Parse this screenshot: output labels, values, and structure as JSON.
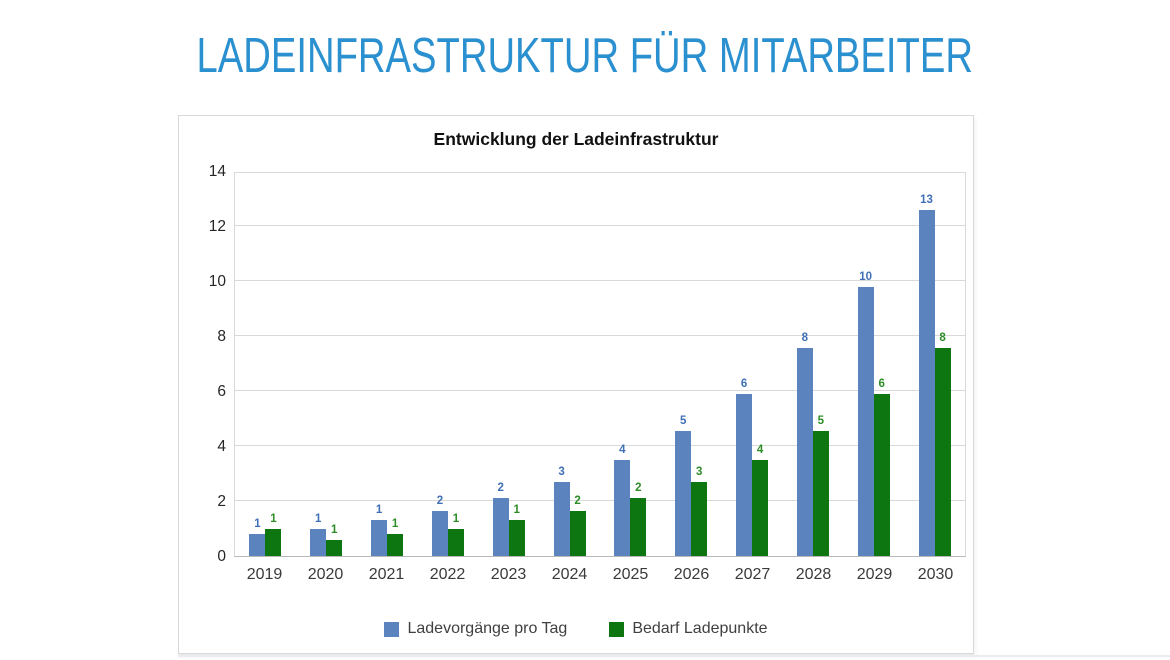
{
  "page": {
    "title": "LADEINFRASTRUKTUR FÜR MITARBEITER",
    "title_color": "#2b90cf",
    "background_color": "#ffffff"
  },
  "chart_data": {
    "type": "bar",
    "title": "Entwicklung der Ladeinfrastruktur",
    "categories": [
      "2019",
      "2020",
      "2021",
      "2022",
      "2023",
      "2024",
      "2025",
      "2026",
      "2027",
      "2028",
      "2029",
      "2030"
    ],
    "series": [
      {
        "name": "Ladevorgänge pro Tag",
        "color": "#5b83be",
        "label_color": "#3f6fb5",
        "values": [
          0.8,
          1.0,
          1.3,
          1.65,
          2.1,
          2.7,
          3.5,
          4.55,
          5.9,
          7.55,
          9.8,
          12.6
        ],
        "labels": [
          "1",
          "1",
          "1",
          "2",
          "2",
          "3",
          "4",
          "5",
          "6",
          "8",
          "10",
          "13"
        ]
      },
      {
        "name": "Bedarf Ladepunkte",
        "color": "#0e7610",
        "label_color": "#2e8c27",
        "values": [
          1.0,
          0.6,
          0.8,
          1.0,
          1.3,
          1.65,
          2.1,
          2.7,
          3.5,
          4.55,
          5.9,
          7.55
        ],
        "labels": [
          "1",
          "1",
          "1",
          "1",
          "1",
          "2",
          "2",
          "3",
          "4",
          "5",
          "6",
          "8"
        ]
      }
    ],
    "xlabel": "",
    "ylabel": "",
    "ylim": [
      0,
      14
    ],
    "yticks": [
      "0",
      "2",
      "4",
      "6",
      "8",
      "10",
      "12",
      "14"
    ],
    "grid": true,
    "legend_position": "bottom"
  }
}
